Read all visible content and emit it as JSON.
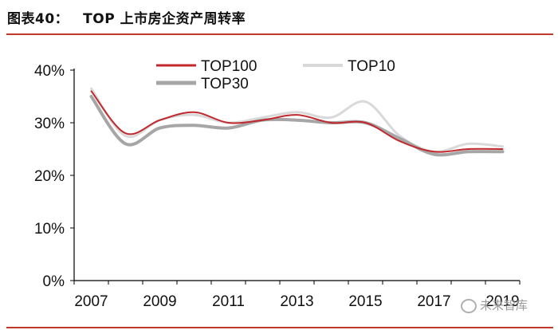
{
  "header": {
    "figure_number": "图表40：",
    "title": "TOP 上市房企资产周转率"
  },
  "watermark": {
    "text": "未来智库"
  },
  "colors": {
    "TOP100": "#c0282d",
    "TOP10": "#d9d9d9",
    "TOP30": "#a6a6a6",
    "rule": "#c0392b",
    "axis": "#000000"
  },
  "chart_data": {
    "type": "line",
    "title": "TOP 上市房企资产周转率",
    "xlabel": "",
    "ylabel": "",
    "x": [
      2007,
      2008,
      2009,
      2010,
      2011,
      2012,
      2013,
      2014,
      2015,
      2016,
      2017,
      2018,
      2019
    ],
    "xlim": [
      2006.5,
      2019.5
    ],
    "xticks": [
      "2007",
      "2009",
      "2011",
      "2013",
      "2015",
      "2017",
      "2019"
    ],
    "ylim": [
      0,
      40
    ],
    "yticks": [
      "0%",
      "10%",
      "20%",
      "30%",
      "40%"
    ],
    "grid": false,
    "legend_position": "top",
    "series": [
      {
        "name": "TOP100",
        "values": [
          36,
          28,
          30.5,
          32,
          30,
          30.5,
          31.5,
          30,
          30,
          26.5,
          24.5,
          25,
          25
        ]
      },
      {
        "name": "TOP10",
        "values": [
          36.5,
          27.5,
          30.5,
          31.5,
          30,
          31,
          32,
          31,
          34,
          27.5,
          24.5,
          26,
          25.5
        ]
      },
      {
        "name": "TOP30",
        "values": [
          35,
          26,
          29,
          29.5,
          29,
          30.5,
          30.5,
          30,
          30,
          27,
          24,
          24.5,
          24.5
        ]
      }
    ]
  }
}
